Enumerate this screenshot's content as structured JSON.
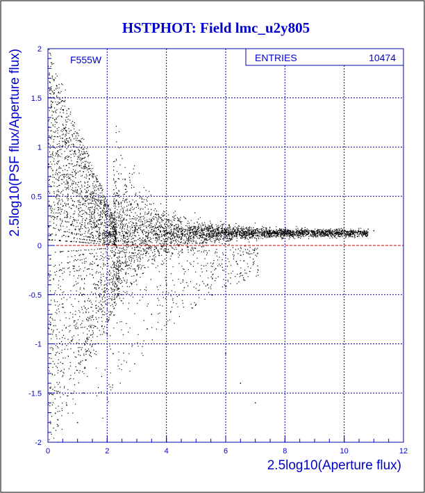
{
  "chart_data": {
    "type": "scatter",
    "title": "HSTPHOT: Field lmc_u2y805",
    "xlabel": "2.5log10(Aperture flux)",
    "ylabel": "2.5log10(PSF flux/Aperture flux)",
    "xlim": [
      0,
      12
    ],
    "ylim": [
      -2,
      2
    ],
    "x_ticks": [
      "0",
      "2",
      "4",
      "6",
      "8",
      "10",
      "12"
    ],
    "y_ticks": [
      "-2",
      "-1.5",
      "-1",
      "-0.5",
      "0",
      "0.5",
      "1",
      "1.5",
      "2"
    ],
    "grid": true,
    "reference_line_y": 0,
    "annotation": "F555W",
    "stats": {
      "label": "ENTRIES",
      "value": "10474"
    },
    "point_count": 10474,
    "points": [
      [
        0.15,
        1.72
      ],
      [
        0.2,
        1.55
      ],
      [
        0.3,
        1.62
      ],
      [
        0.4,
        1.45
      ],
      [
        0.5,
        1.38
      ],
      [
        0.3,
        1.25
      ],
      [
        0.6,
        1.2
      ],
      [
        0.7,
        1.05
      ],
      [
        0.9,
        0.95
      ],
      [
        1.0,
        0.85
      ],
      [
        1.2,
        0.75
      ],
      [
        1.4,
        0.6
      ],
      [
        1.6,
        0.5
      ],
      [
        1.8,
        0.42
      ],
      [
        2.0,
        0.35
      ],
      [
        2.5,
        0.25
      ],
      [
        3.0,
        0.2
      ],
      [
        3.5,
        0.16
      ],
      [
        4.0,
        0.15
      ],
      [
        4.5,
        0.14
      ],
      [
        5.0,
        0.14
      ],
      [
        5.5,
        0.14
      ],
      [
        6.0,
        0.14
      ],
      [
        6.5,
        0.14
      ],
      [
        7.0,
        0.14
      ],
      [
        7.5,
        0.14
      ],
      [
        8.0,
        0.14
      ],
      [
        8.5,
        0.14
      ],
      [
        9.0,
        0.14
      ],
      [
        9.5,
        0.14
      ],
      [
        10.0,
        0.14
      ],
      [
        10.5,
        0.14
      ],
      [
        11.0,
        0.15
      ],
      [
        1.5,
        -0.3
      ],
      [
        1.8,
        -0.6
      ],
      [
        2.0,
        -0.9
      ],
      [
        2.2,
        -1.1
      ],
      [
        2.5,
        -0.5
      ],
      [
        3.0,
        -0.3
      ],
      [
        3.5,
        -0.7
      ],
      [
        4.0,
        -0.4
      ],
      [
        5.0,
        -0.6
      ],
      [
        6.0,
        -1.1
      ],
      [
        6.5,
        -1.4
      ],
      [
        7.0,
        -1.6
      ],
      [
        1.2,
        -1.5
      ],
      [
        1.0,
        -1.8
      ],
      [
        0.5,
        -1.2
      ]
    ]
  }
}
